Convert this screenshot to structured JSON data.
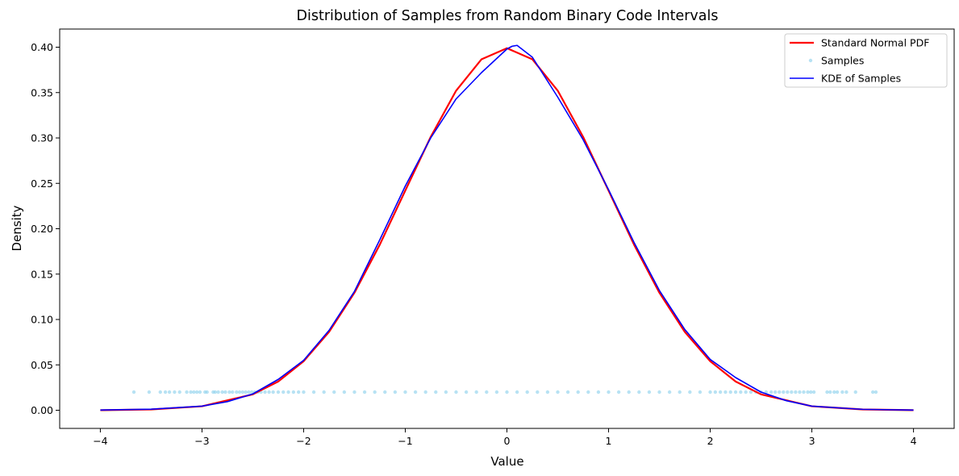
{
  "chart_data": {
    "type": "line",
    "title": "Distribution of Samples from Random Binary Code Intervals",
    "xlabel": "Value",
    "ylabel": "Density",
    "xlim": [
      -4.4,
      4.4
    ],
    "ylim": [
      -0.02,
      0.42
    ],
    "xticks": [
      -4,
      -3,
      -2,
      -1,
      0,
      1,
      2,
      3,
      4
    ],
    "xtick_labels": [
      "−4",
      "−3",
      "−2",
      "−1",
      "0",
      "1",
      "2",
      "3",
      "4"
    ],
    "yticks": [
      0.0,
      0.05,
      0.1,
      0.15,
      0.2,
      0.25,
      0.3,
      0.35,
      0.4
    ],
    "ytick_labels": [
      "0.00",
      "0.05",
      "0.10",
      "0.15",
      "0.20",
      "0.25",
      "0.30",
      "0.35",
      "0.40"
    ],
    "grid": false,
    "legend_position": "top-right",
    "series": [
      {
        "name": "Standard Normal PDF",
        "kind": "line",
        "color": "#ff0000",
        "x": [
          -4,
          -3.5,
          -3,
          -2.5,
          -2.25,
          -2,
          -1.75,
          -1.5,
          -1.25,
          -1,
          -0.75,
          -0.5,
          -0.25,
          0,
          0.25,
          0.5,
          0.75,
          1,
          1.25,
          1.5,
          1.75,
          2,
          2.25,
          2.5,
          3,
          3.5,
          4
        ],
        "y": [
          0.0001,
          0.0009,
          0.0044,
          0.0175,
          0.0317,
          0.054,
          0.0863,
          0.1295,
          0.1826,
          0.242,
          0.3011,
          0.3521,
          0.3867,
          0.3989,
          0.3867,
          0.3521,
          0.3011,
          0.242,
          0.1826,
          0.1295,
          0.0863,
          0.054,
          0.0317,
          0.0175,
          0.0044,
          0.0009,
          0.0001
        ]
      },
      {
        "name": "Samples",
        "kind": "scatter",
        "color": "#87ceeb",
        "y_level": 0.02,
        "x": [
          -3.67,
          -3.52,
          -3.41,
          -3.36,
          -3.32,
          -3.27,
          -3.22,
          -3.15,
          -3.11,
          -3.08,
          -3.05,
          -3.02,
          -2.97,
          -2.95,
          -2.89,
          -2.87,
          -2.84,
          -2.8,
          -2.77,
          -2.73,
          -2.7,
          -2.66,
          -2.63,
          -2.6,
          -2.57,
          -2.54,
          -2.51,
          -2.48,
          -2.45,
          -2.42,
          -2.38,
          -2.34,
          -2.3,
          -2.25,
          -2.2,
          -2.15,
          -2.1,
          -2.05,
          -2.0,
          -1.9,
          -1.8,
          -1.7,
          -1.6,
          -1.5,
          -1.4,
          -1.3,
          -1.2,
          -1.1,
          -1.0,
          -0.9,
          -0.8,
          -0.7,
          -0.6,
          -0.5,
          -0.4,
          -0.3,
          -0.2,
          -0.1,
          0.0,
          0.1,
          0.2,
          0.3,
          0.4,
          0.5,
          0.6,
          0.7,
          0.8,
          0.9,
          1.0,
          1.1,
          1.2,
          1.3,
          1.4,
          1.5,
          1.6,
          1.7,
          1.8,
          1.9,
          2.0,
          2.05,
          2.1,
          2.15,
          2.2,
          2.25,
          2.3,
          2.35,
          2.4,
          2.45,
          2.5,
          2.55,
          2.6,
          2.64,
          2.68,
          2.72,
          2.76,
          2.8,
          2.84,
          2.88,
          2.92,
          2.96,
          2.99,
          3.02,
          3.15,
          3.18,
          3.22,
          3.25,
          3.3,
          3.34,
          3.43,
          3.6,
          3.63
        ]
      },
      {
        "name": "KDE of Samples",
        "kind": "line",
        "color": "#0000ff",
        "x": [
          -4,
          -3.5,
          -3,
          -2.75,
          -2.5,
          -2.25,
          -2,
          -1.75,
          -1.5,
          -1.25,
          -1,
          -0.75,
          -0.5,
          -0.25,
          0,
          0.05,
          0.1,
          0.25,
          0.5,
          0.75,
          1,
          1.25,
          1.5,
          1.75,
          2,
          2.25,
          2.5,
          2.75,
          3,
          3.5,
          4
        ],
        "y": [
          0.0002,
          0.0012,
          0.0045,
          0.0095,
          0.018,
          0.034,
          0.055,
          0.088,
          0.131,
          0.188,
          0.247,
          0.3,
          0.343,
          0.372,
          0.398,
          0.401,
          0.402,
          0.389,
          0.345,
          0.298,
          0.243,
          0.185,
          0.132,
          0.089,
          0.056,
          0.036,
          0.02,
          0.0105,
          0.0045,
          0.001,
          0.0002
        ]
      }
    ]
  }
}
